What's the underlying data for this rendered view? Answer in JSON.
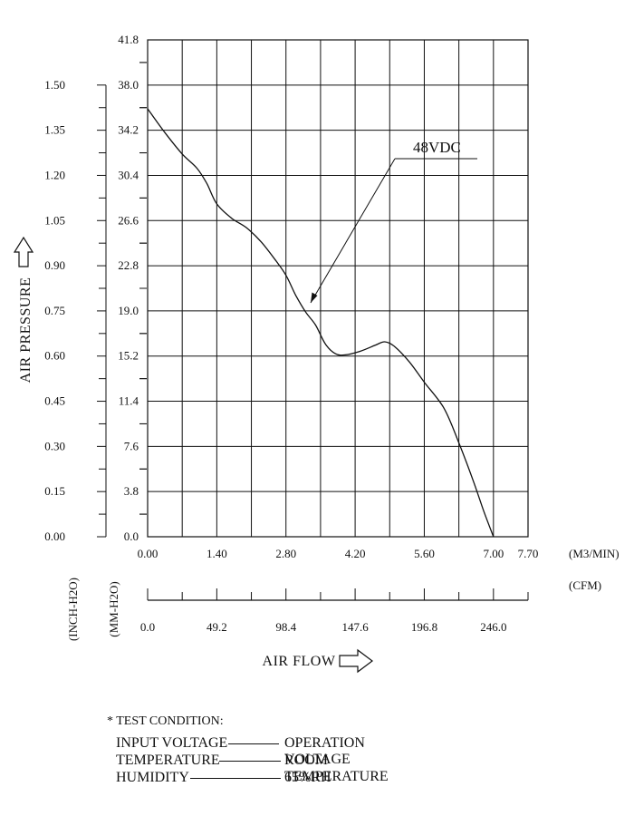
{
  "chart_data": {
    "type": "line",
    "series": [
      {
        "name": "48VDC",
        "x": [
          0.0,
          0.35,
          0.7,
          1.0,
          1.2,
          1.4,
          1.7,
          2.0,
          2.3,
          2.6,
          2.8,
          3.0,
          3.2,
          3.4,
          3.6,
          3.8,
          4.0,
          4.3,
          4.6,
          4.8,
          5.0,
          5.3,
          5.6,
          6.0,
          6.3,
          6.6,
          6.8,
          7.0
        ],
        "y": [
          36.0,
          34.0,
          32.2,
          31.0,
          29.7,
          28.0,
          26.8,
          26.0,
          24.8,
          23.2,
          22.0,
          20.3,
          18.9,
          17.8,
          16.2,
          15.4,
          15.3,
          15.6,
          16.1,
          16.4,
          16.0,
          14.7,
          13.0,
          10.8,
          7.9,
          4.6,
          2.2,
          0.0
        ]
      }
    ],
    "series_label": "48VDC",
    "x_ticks_m3min": [
      "0.00",
      "1.40",
      "2.80",
      "4.20",
      "5.60",
      "7.00",
      "7.70"
    ],
    "x_unit_m3min": "(M3/MIN)",
    "x_ticks_cfm": [
      "0.0",
      "49.2",
      "98.4",
      "147.6",
      "196.8",
      "246.0"
    ],
    "x_unit_cfm": "(CFM)",
    "y_ticks_mmh2o": [
      "0.0",
      "3.8",
      "7.6",
      "11.4",
      "15.2",
      "19.0",
      "22.8",
      "26.6",
      "30.4",
      "34.2",
      "38.0",
      "41.8"
    ],
    "y_unit_mmh2o": "(MM-H2O)",
    "y_ticks_inchh2o": [
      "0.00",
      "0.15",
      "0.30",
      "0.45",
      "0.60",
      "0.75",
      "0.90",
      "1.05",
      "1.20",
      "1.35",
      "1.50"
    ],
    "y_unit_inchh2o": "(INCH-H2O)",
    "xlim": [
      0,
      7.7
    ],
    "ylim": [
      0,
      41.8
    ],
    "xlabel": "AIR FLOW",
    "ylabel": "AIR PRESSURE",
    "grid": true
  },
  "test_condition": {
    "title": "* TEST CONDITION:",
    "rows": [
      {
        "key": "INPUT VOLTAGE",
        "value": "OPERATION VOLTAGE"
      },
      {
        "key": "TEMPERATURE",
        "value": "ROOM TEMPERATURE"
      },
      {
        "key": "HUMIDITY",
        "value": "65%RH"
      }
    ]
  }
}
